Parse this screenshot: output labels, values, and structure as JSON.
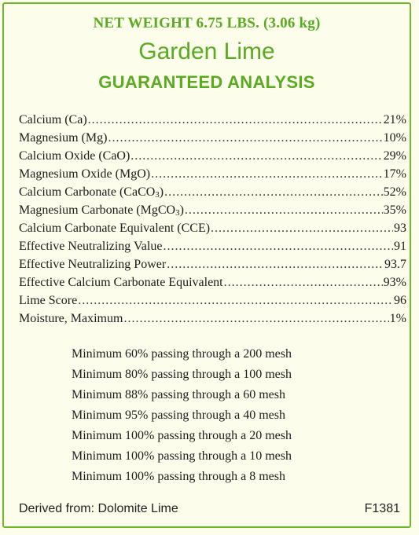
{
  "header": {
    "net_weight": "NET WEIGHT 6.75 LBS. (3.06 kg)",
    "product_name": "Garden Lime",
    "heading": "GUARANTEED ANALYSIS"
  },
  "analysis": [
    {
      "name": "Calcium (Ca)",
      "value": "21%"
    },
    {
      "name": "Magnesium (Mg)",
      "value": "10%"
    },
    {
      "name": "Calcium Oxide (CaO)",
      "value": "29%"
    },
    {
      "name": "Magnesium Oxide (MgO)",
      "value": "17%"
    },
    {
      "name_prefix": "Calcium Carbonate (CaCO",
      "name_sub": "3",
      "name_suffix": ")",
      "value": "52%"
    },
    {
      "name_prefix": "Magnesium Carbonate (MgCO",
      "name_sub": "3",
      "name_suffix": ")",
      "value": "35%"
    },
    {
      "name": "Calcium Carbonate Equivalent (CCE)",
      "value": "93"
    },
    {
      "name": "Effective Neutralizing Value",
      "value": "91"
    },
    {
      "name": "Effective Neutralizing Power",
      "value": "93.7"
    },
    {
      "name": "Effective Calcium Carbonate Equivalent",
      "value": "93%"
    },
    {
      "name": "Lime Score",
      "value": "96"
    },
    {
      "name": "Moisture, Maximum",
      "value": "1%"
    }
  ],
  "mesh": [
    "Minimum 60% passing through a 200 mesh",
    "Minimum 80% passing through a 100 mesh",
    "Minimum 88% passing through a 60 mesh",
    "Minimum 95% passing through a 40 mesh",
    "Minimum 100% passing through a 20 mesh",
    "Minimum 100% passing through a 10 mesh",
    "Minimum 100% passing through a 8 mesh"
  ],
  "footer": {
    "derived_from": "Derived from: Dolomite Lime",
    "code": "F1381"
  },
  "colors": {
    "accent_green": "#5aaa22",
    "border_green": "#6fb82a",
    "background": "#fdfdec"
  }
}
